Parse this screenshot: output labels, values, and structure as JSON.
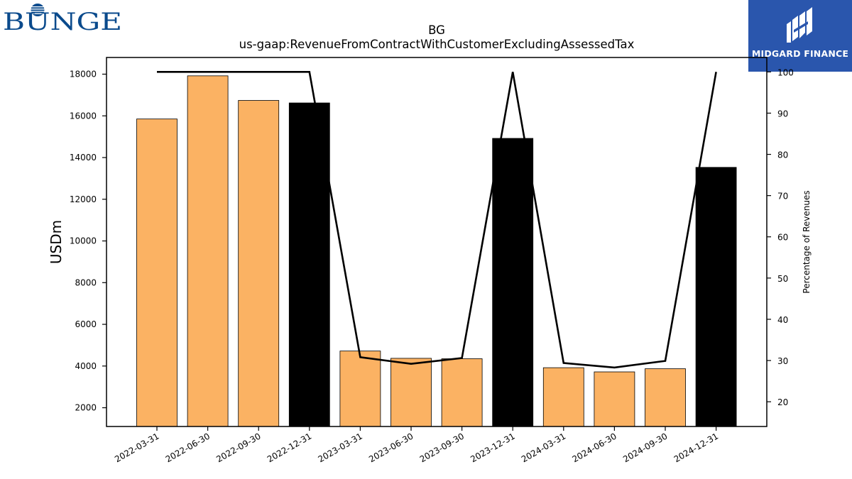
{
  "logos": {
    "left": {
      "text": "BUNGE",
      "color": "#0a4a8c",
      "icon": "bunge-globe-icon"
    },
    "right": {
      "text": "MIDGARD FINANCE",
      "background": "#2a56ad",
      "icon": "midgard-finance-logo-icon"
    }
  },
  "chart_data": {
    "type": "bar",
    "title": "BG",
    "subtitle": "us-gaap:RevenueFromContractWithCustomerExcludingAssessedTax",
    "ylabel": "USDm",
    "y2label": "Percentage of Revenues",
    "categories": [
      "2022-03-31",
      "2022-06-30",
      "2022-09-30",
      "2022-12-31",
      "2023-03-31",
      "2023-06-30",
      "2023-09-30",
      "2023-12-31",
      "2024-03-31",
      "2024-06-30",
      "2024-09-30",
      "2024-12-31"
    ],
    "series": [
      {
        "type": "bar",
        "values": [
          15850,
          17920,
          16740,
          16620,
          4720,
          4370,
          4350,
          14920,
          3920,
          3720,
          3870,
          13530
        ],
        "colors": [
          "#fbb263",
          "#fbb263",
          "#fbb263",
          "#000000",
          "#fbb263",
          "#fbb263",
          "#fbb263",
          "#000000",
          "#fbb263",
          "#fbb263",
          "#fbb263",
          "#000000"
        ]
      },
      {
        "type": "line",
        "axis": "right",
        "values": [
          100,
          100,
          100,
          100,
          30.8,
          29.2,
          30.6,
          100,
          29.4,
          28.3,
          29.9,
          100
        ],
        "color": "#000000"
      }
    ],
    "ylim": [
      1100,
      18800
    ],
    "y_ticks": [
      2000,
      4000,
      6000,
      8000,
      10000,
      12000,
      14000,
      16000,
      18000
    ],
    "y2lim": [
      14.0,
      103.5
    ],
    "y2_ticks": [
      20,
      30,
      40,
      50,
      60,
      70,
      80,
      90,
      100
    ],
    "grid": false,
    "legend": "none"
  }
}
